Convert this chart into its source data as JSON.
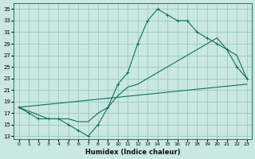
{
  "xlabel": "Humidex (Indice chaleur)",
  "bg_color": "#c8e8e0",
  "grid_color": "#90c4bc",
  "line_color": "#1a6b5a",
  "xlim": [
    -0.5,
    23.5
  ],
  "ylim": [
    12.5,
    36
  ],
  "xticks": [
    0,
    1,
    2,
    3,
    4,
    5,
    6,
    7,
    8,
    9,
    10,
    11,
    12,
    13,
    14,
    15,
    16,
    17,
    18,
    19,
    20,
    21,
    22,
    23
  ],
  "yticks": [
    13,
    15,
    17,
    19,
    21,
    23,
    25,
    27,
    29,
    31,
    33,
    35
  ],
  "curve1_x": [
    0,
    1,
    2,
    3,
    4,
    5,
    6,
    7,
    8,
    9,
    10,
    11,
    12,
    13,
    14,
    15,
    16,
    17,
    18,
    19,
    20,
    21,
    22,
    23
  ],
  "curve1_y": [
    18,
    17,
    16,
    16,
    16,
    15,
    14,
    13,
    15,
    18,
    22,
    24,
    29,
    33,
    35,
    34,
    33,
    33,
    31,
    30,
    29,
    28,
    25,
    23
  ],
  "curve2_x": [
    0,
    3,
    4,
    5,
    6,
    7,
    8,
    9,
    10,
    11,
    12,
    13,
    14,
    15,
    16,
    17,
    18,
    19,
    20,
    21,
    22,
    23
  ],
  "curve2_y": [
    18,
    16,
    16,
    16,
    15.5,
    15.5,
    17,
    18,
    20,
    21.5,
    22,
    23,
    24,
    25,
    26,
    27,
    28,
    29,
    30,
    28,
    27,
    23
  ],
  "curve3_x": [
    0,
    23
  ],
  "curve3_y": [
    18,
    22
  ]
}
